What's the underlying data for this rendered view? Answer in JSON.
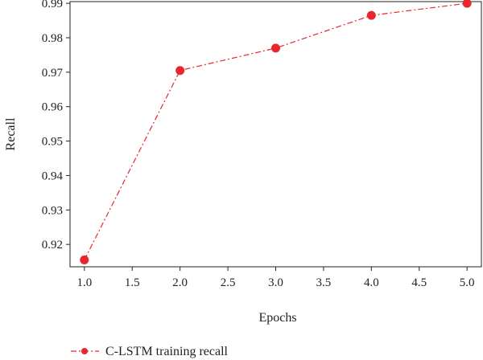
{
  "chart_data": {
    "type": "line",
    "title": "",
    "xlabel": "Epochs",
    "ylabel": "Recall",
    "xlim": [
      0.85,
      5.15
    ],
    "ylim": [
      0.9135,
      0.9905
    ],
    "xticks": [
      1.0,
      1.5,
      2.0,
      2.5,
      3.0,
      3.5,
      4.0,
      4.5,
      5.0
    ],
    "xtick_labels": [
      "1.0",
      "1.5",
      "2.0",
      "2.5",
      "3.0",
      "3.5",
      "4.0",
      "4.5",
      "5.0"
    ],
    "yticks": [
      0.92,
      0.93,
      0.94,
      0.95,
      0.96,
      0.97,
      0.98,
      0.99
    ],
    "ytick_labels": [
      "0.92",
      "0.93",
      "0.94",
      "0.95",
      "0.96",
      "0.97",
      "0.98",
      "0.99"
    ],
    "grid": false,
    "legend_position": "bottom-left",
    "series": [
      {
        "name": "C-LSTM training recall",
        "color": "#e8262b",
        "line_style": "dash-dot",
        "marker": "circle",
        "x": [
          1.0,
          2.0,
          3.0,
          4.0,
          5.0
        ],
        "y": [
          0.9155,
          0.9705,
          0.977,
          0.9865,
          0.99
        ]
      }
    ]
  }
}
